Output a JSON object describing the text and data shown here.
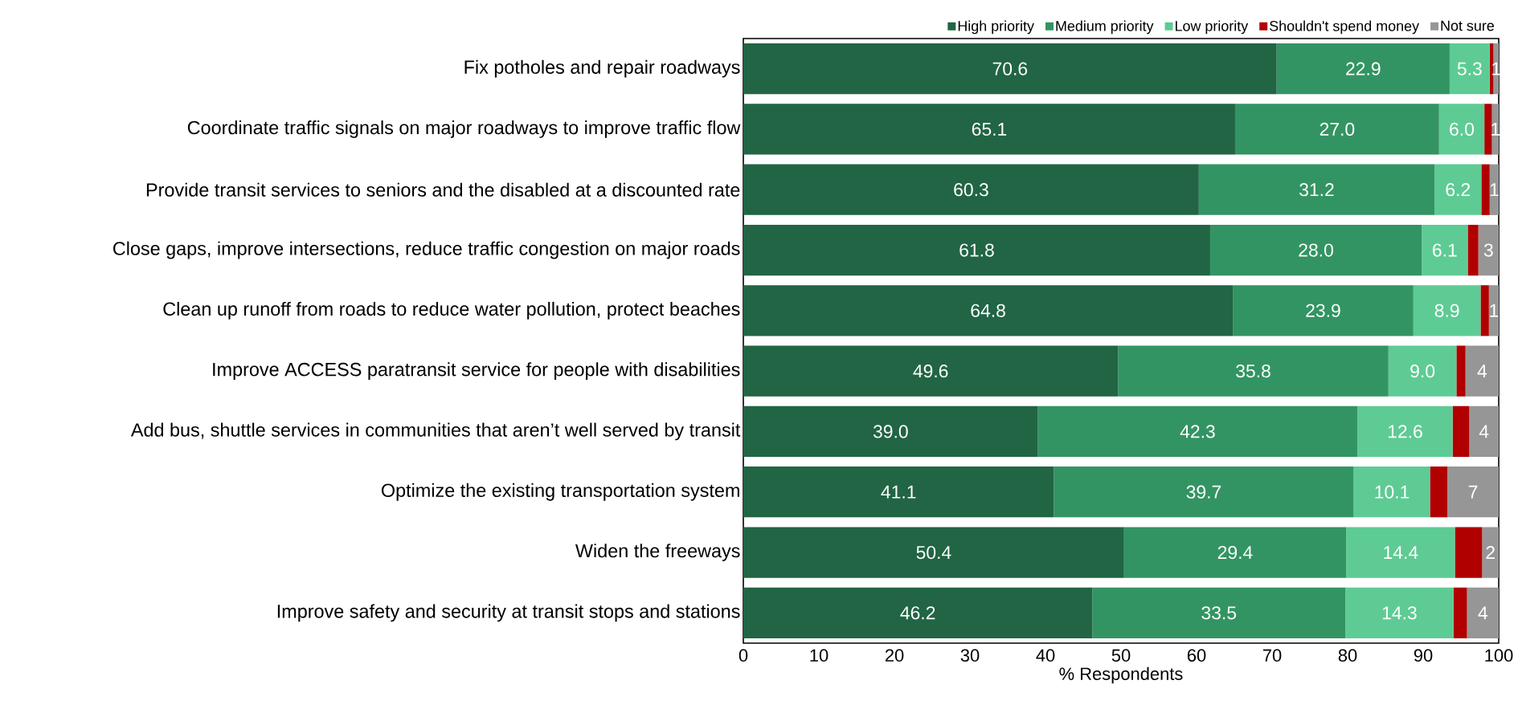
{
  "chart_data": {
    "type": "bar",
    "orientation": "horizontal",
    "stacked": true,
    "xlabel": "% Respondents",
    "categories": [
      "Fix potholes and repair roadways",
      "Coordinate traffic signals on major roadways to improve traffic flow",
      "Provide transit services to seniors and the disabled at a discounted rate",
      "Close gaps, improve intersections, reduce traffic congestion on major roads",
      "Clean up runoff from roads to reduce water pollution,  protect beaches",
      "Improve ACCESS paratransit service for people with disabilities",
      "Add bus, shuttle services in communities that aren’t well served by transit",
      "Optimize the existing transportation system",
      "Widen the freeways",
      "Improve safety and security at transit stops and stations"
    ],
    "series": [
      {
        "name": "High priority",
        "color": "#216544",
        "values": [
          70.6,
          65.1,
          60.3,
          61.8,
          64.8,
          49.6,
          39.0,
          41.1,
          50.4,
          46.2
        ],
        "value_labels": [
          "70.6",
          "65.1",
          "60.3",
          "61.8",
          "64.8",
          "49.6",
          "39.0",
          "41.1",
          "50.4",
          "46.2"
        ]
      },
      {
        "name": "Medium priority",
        "color": "#339463",
        "values": [
          22.9,
          27.0,
          31.2,
          28.0,
          23.9,
          35.8,
          42.3,
          39.7,
          29.4,
          33.5
        ],
        "value_labels": [
          "22.9",
          "27.0",
          "31.2",
          "28.0",
          "23.9",
          "35.8",
          "42.3",
          "39.7",
          "29.4",
          "33.5"
        ]
      },
      {
        "name": "Low priority",
        "color": "#5ecb94",
        "values": [
          5.3,
          6.0,
          6.2,
          6.1,
          8.9,
          9.0,
          12.6,
          10.1,
          14.4,
          14.3
        ],
        "value_labels": [
          "5.3",
          "6.0",
          "6.2",
          "6.1",
          "8.9",
          "9.0",
          "12.6",
          "10.1",
          "14.4",
          "14.3"
        ]
      },
      {
        "name": "Shouldn't spend money",
        "color": "#b00000",
        "values": [
          0.5,
          1.0,
          1.1,
          1.4,
          1.1,
          1.2,
          2.2,
          2.3,
          3.6,
          1.8
        ]
      },
      {
        "name": "Not sure",
        "color": "#969696",
        "values": [
          0.7,
          0.9,
          1.2,
          2.7,
          1.3,
          4.4,
          3.9,
          6.8,
          2.2,
          4.2
        ],
        "value_labels": [
          "1",
          "1",
          "1",
          "3",
          "1",
          "4",
          "4",
          "7",
          "2",
          "4"
        ]
      }
    ],
    "xlim": [
      0,
      100
    ],
    "xticks": [
      0,
      10,
      20,
      30,
      40,
      50,
      60,
      70,
      80,
      90,
      100
    ],
    "grid": false,
    "legend": "top"
  }
}
